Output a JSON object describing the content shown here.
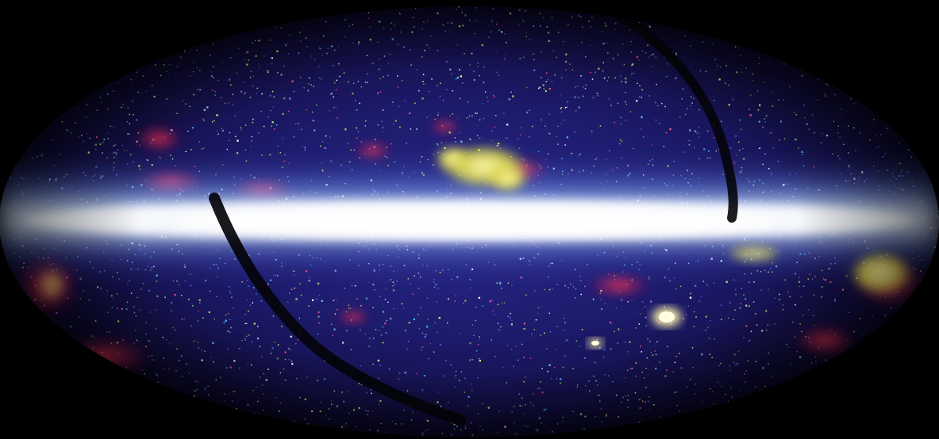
{
  "image": {
    "colors": {
      "background": "#000000",
      "frame_border": "#ffffff",
      "deep_blue": "#1a1a6e",
      "violet": "#3a2f9a",
      "cyan_band": "#bfe8ff",
      "band_core": "#ffffff",
      "red_emission": "#d0204a",
      "magenta": "#b02a8a",
      "yellow_cloud": "#f2f26a",
      "green_star": "#9adf5a",
      "scan_gap": "#05050c"
    }
  }
}
